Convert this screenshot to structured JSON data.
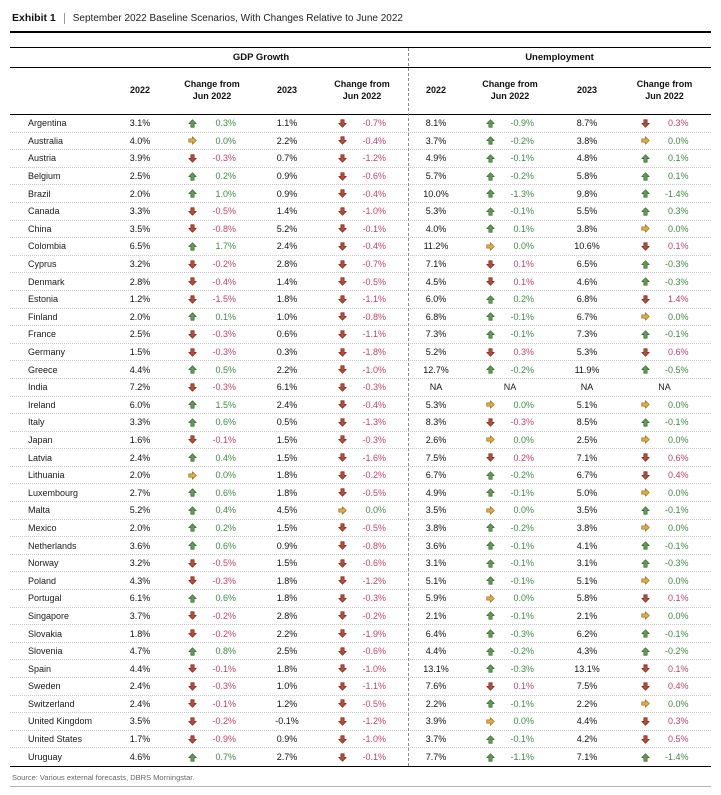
{
  "exhibit": {
    "label": "Exhibit 1",
    "title": "September 2022 Baseline Scenarios, With Changes Relative to June 2022"
  },
  "table": {
    "group_headers": {
      "gdp": "GDP Growth",
      "unemployment": "Unemployment"
    },
    "col_headers": {
      "y2022": "2022",
      "chg": "Change from\nJun 2022",
      "y2023": "2023"
    },
    "rows": [
      {
        "country": "Argentina",
        "g22": "3.1%",
        "gc22": [
          "0.3%",
          "up"
        ],
        "g23": "1.1%",
        "gc23": [
          "-0.7%",
          "down"
        ],
        "u22": "8.1%",
        "uc22": [
          "-0.9%",
          "up"
        ],
        "u23": "8.7%",
        "uc23": [
          "0.3%",
          "down"
        ]
      },
      {
        "country": "Australia",
        "g22": "4.0%",
        "gc22": [
          "0.0%",
          "flat"
        ],
        "g23": "2.2%",
        "gc23": [
          "-0.4%",
          "down"
        ],
        "u22": "3.7%",
        "uc22": [
          "-0.2%",
          "up"
        ],
        "u23": "3.8%",
        "uc23": [
          "0.0%",
          "flat"
        ]
      },
      {
        "country": "Austria",
        "g22": "3.9%",
        "gc22": [
          "-0.3%",
          "down"
        ],
        "g23": "0.7%",
        "gc23": [
          "-1.2%",
          "down"
        ],
        "u22": "4.9%",
        "uc22": [
          "-0.1%",
          "up"
        ],
        "u23": "4.8%",
        "uc23": [
          "0.1%",
          "up"
        ]
      },
      {
        "country": "Belgium",
        "g22": "2.5%",
        "gc22": [
          "0.2%",
          "up"
        ],
        "g23": "0.9%",
        "gc23": [
          "-0.6%",
          "down"
        ],
        "u22": "5.7%",
        "uc22": [
          "-0.2%",
          "up"
        ],
        "u23": "5.8%",
        "uc23": [
          "0.1%",
          "up"
        ]
      },
      {
        "country": "Brazil",
        "g22": "2.0%",
        "gc22": [
          "1.0%",
          "up"
        ],
        "g23": "0.9%",
        "gc23": [
          "-0.4%",
          "down"
        ],
        "u22": "10.0%",
        "uc22": [
          "-1.3%",
          "up"
        ],
        "u23": "9.8%",
        "uc23": [
          "-1.4%",
          "up"
        ]
      },
      {
        "country": "Canada",
        "g22": "3.3%",
        "gc22": [
          "-0.5%",
          "down"
        ],
        "g23": "1.4%",
        "gc23": [
          "-1.0%",
          "down"
        ],
        "u22": "5.3%",
        "uc22": [
          "-0.1%",
          "up"
        ],
        "u23": "5.5%",
        "uc23": [
          "0.3%",
          "up"
        ]
      },
      {
        "country": "China",
        "g22": "3.5%",
        "gc22": [
          "-0.8%",
          "down"
        ],
        "g23": "5.2%",
        "gc23": [
          "-0.1%",
          "down"
        ],
        "u22": "4.0%",
        "uc22": [
          "0.1%",
          "up"
        ],
        "u23": "3.8%",
        "uc23": [
          "0.0%",
          "flat"
        ]
      },
      {
        "country": "Colombia",
        "g22": "6.5%",
        "gc22": [
          "1.7%",
          "up"
        ],
        "g23": "2.4%",
        "gc23": [
          "-0.4%",
          "down"
        ],
        "u22": "11.2%",
        "uc22": [
          "0.0%",
          "flat"
        ],
        "u23": "10.6%",
        "uc23": [
          "0.1%",
          "down"
        ]
      },
      {
        "country": "Cyprus",
        "g22": "3.2%",
        "gc22": [
          "-0.2%",
          "down"
        ],
        "g23": "2.8%",
        "gc23": [
          "-0.7%",
          "down"
        ],
        "u22": "7.1%",
        "uc22": [
          "0.1%",
          "down"
        ],
        "u23": "6.5%",
        "uc23": [
          "-0.3%",
          "up"
        ]
      },
      {
        "country": "Denmark",
        "g22": "2.8%",
        "gc22": [
          "-0.4%",
          "down"
        ],
        "g23": "1.4%",
        "gc23": [
          "-0.5%",
          "down"
        ],
        "u22": "4.5%",
        "uc22": [
          "0.1%",
          "down"
        ],
        "u23": "4.6%",
        "uc23": [
          "-0.3%",
          "up"
        ]
      },
      {
        "country": "Estonia",
        "g22": "1.2%",
        "gc22": [
          "-1.5%",
          "down"
        ],
        "g23": "1.8%",
        "gc23": [
          "-1.1%",
          "down"
        ],
        "u22": "6.0%",
        "uc22": [
          "0.2%",
          "up"
        ],
        "u23": "6.8%",
        "uc23": [
          "1.4%",
          "down"
        ]
      },
      {
        "country": "Finland",
        "g22": "2.0%",
        "gc22": [
          "0.1%",
          "up"
        ],
        "g23": "1.0%",
        "gc23": [
          "-0.8%",
          "down"
        ],
        "u22": "6.8%",
        "uc22": [
          "-0.1%",
          "up"
        ],
        "u23": "6.7%",
        "uc23": [
          "0.0%",
          "flat"
        ]
      },
      {
        "country": "France",
        "g22": "2.5%",
        "gc22": [
          "-0.3%",
          "down"
        ],
        "g23": "0.6%",
        "gc23": [
          "-1.1%",
          "down"
        ],
        "u22": "7.3%",
        "uc22": [
          "-0.1%",
          "up"
        ],
        "u23": "7.3%",
        "uc23": [
          "-0.1%",
          "up"
        ]
      },
      {
        "country": "Germany",
        "g22": "1.5%",
        "gc22": [
          "-0.3%",
          "down"
        ],
        "g23": "0.3%",
        "gc23": [
          "-1.8%",
          "down"
        ],
        "u22": "5.2%",
        "uc22": [
          "0.3%",
          "down"
        ],
        "u23": "5.3%",
        "uc23": [
          "0.6%",
          "down"
        ]
      },
      {
        "country": "Greece",
        "g22": "4.4%",
        "gc22": [
          "0.5%",
          "up"
        ],
        "g23": "2.2%",
        "gc23": [
          "-1.0%",
          "down"
        ],
        "u22": "12.7%",
        "uc22": [
          "-0.2%",
          "up"
        ],
        "u23": "11.9%",
        "uc23": [
          "-0.5%",
          "up"
        ]
      },
      {
        "country": "India",
        "g22": "7.2%",
        "gc22": [
          "-0.3%",
          "down"
        ],
        "g23": "6.1%",
        "gc23": [
          "-0.3%",
          "down"
        ],
        "u22": "NA",
        "uc22": [
          "NA",
          "na"
        ],
        "u23": "NA",
        "uc23": [
          "NA",
          "na"
        ]
      },
      {
        "country": "Ireland",
        "g22": "6.0%",
        "gc22": [
          "1.5%",
          "up"
        ],
        "g23": "2.4%",
        "gc23": [
          "-0.4%",
          "down"
        ],
        "u22": "5.3%",
        "uc22": [
          "0.0%",
          "flat"
        ],
        "u23": "5.1%",
        "uc23": [
          "0.0%",
          "flat"
        ]
      },
      {
        "country": "Italy",
        "g22": "3.3%",
        "gc22": [
          "0.6%",
          "up"
        ],
        "g23": "0.5%",
        "gc23": [
          "-1.3%",
          "down"
        ],
        "u22": "8.3%",
        "uc22": [
          "-0.3%",
          "down"
        ],
        "u23": "8.5%",
        "uc23": [
          "-0.1%",
          "up"
        ]
      },
      {
        "country": "Japan",
        "g22": "1.6%",
        "gc22": [
          "-0.1%",
          "down"
        ],
        "g23": "1.5%",
        "gc23": [
          "-0.3%",
          "down"
        ],
        "u22": "2.6%",
        "uc22": [
          "0.0%",
          "flat"
        ],
        "u23": "2.5%",
        "uc23": [
          "0.0%",
          "flat"
        ]
      },
      {
        "country": "Latvia",
        "g22": "2.4%",
        "gc22": [
          "0.4%",
          "up"
        ],
        "g23": "1.5%",
        "gc23": [
          "-1.6%",
          "down"
        ],
        "u22": "7.5%",
        "uc22": [
          "0.2%",
          "down"
        ],
        "u23": "7.1%",
        "uc23": [
          "0.6%",
          "down"
        ]
      },
      {
        "country": "Lithuania",
        "g22": "2.0%",
        "gc22": [
          "0.0%",
          "flat"
        ],
        "g23": "1.8%",
        "gc23": [
          "-0.2%",
          "down"
        ],
        "u22": "6.7%",
        "uc22": [
          "-0.2%",
          "up"
        ],
        "u23": "6.7%",
        "uc23": [
          "0.4%",
          "down"
        ]
      },
      {
        "country": "Luxembourg",
        "g22": "2.7%",
        "gc22": [
          "0.6%",
          "up"
        ],
        "g23": "1.8%",
        "gc23": [
          "-0.5%",
          "down"
        ],
        "u22": "4.9%",
        "uc22": [
          "-0.1%",
          "up"
        ],
        "u23": "5.0%",
        "uc23": [
          "0.0%",
          "flat"
        ]
      },
      {
        "country": "Malta",
        "g22": "5.2%",
        "gc22": [
          "0.4%",
          "up"
        ],
        "g23": "4.5%",
        "gc23": [
          "0.0%",
          "flat"
        ],
        "u22": "3.5%",
        "uc22": [
          "0.0%",
          "flat"
        ],
        "u23": "3.5%",
        "uc23": [
          "-0.1%",
          "up"
        ]
      },
      {
        "country": "Mexico",
        "g22": "2.0%",
        "gc22": [
          "0.2%",
          "up"
        ],
        "g23": "1.5%",
        "gc23": [
          "-0.5%",
          "down"
        ],
        "u22": "3.8%",
        "uc22": [
          "-0.2%",
          "up"
        ],
        "u23": "3.8%",
        "uc23": [
          "0.0%",
          "flat"
        ]
      },
      {
        "country": "Netherlands",
        "g22": "3.6%",
        "gc22": [
          "0.6%",
          "up"
        ],
        "g23": "0.9%",
        "gc23": [
          "-0.8%",
          "down"
        ],
        "u22": "3.6%",
        "uc22": [
          "-0.1%",
          "up"
        ],
        "u23": "4.1%",
        "uc23": [
          "-0.1%",
          "up"
        ]
      },
      {
        "country": "Norway",
        "g22": "3.2%",
        "gc22": [
          "-0.5%",
          "down"
        ],
        "g23": "1.5%",
        "gc23": [
          "-0.6%",
          "down"
        ],
        "u22": "3.1%",
        "uc22": [
          "-0.1%",
          "up"
        ],
        "u23": "3.1%",
        "uc23": [
          "-0.3%",
          "up"
        ]
      },
      {
        "country": "Poland",
        "g22": "4.3%",
        "gc22": [
          "-0.3%",
          "down"
        ],
        "g23": "1.8%",
        "gc23": [
          "-1.2%",
          "down"
        ],
        "u22": "5.1%",
        "uc22": [
          "-0.1%",
          "up"
        ],
        "u23": "5.1%",
        "uc23": [
          "0.0%",
          "flat"
        ]
      },
      {
        "country": "Portugal",
        "g22": "6.1%",
        "gc22": [
          "0.6%",
          "up"
        ],
        "g23": "1.8%",
        "gc23": [
          "-0.3%",
          "down"
        ],
        "u22": "5.9%",
        "uc22": [
          "0.0%",
          "flat"
        ],
        "u23": "5.8%",
        "uc23": [
          "0.1%",
          "down"
        ]
      },
      {
        "country": "Singapore",
        "g22": "3.7%",
        "gc22": [
          "-0.2%",
          "down"
        ],
        "g23": "2.8%",
        "gc23": [
          "-0.2%",
          "down"
        ],
        "u22": "2.1%",
        "uc22": [
          "-0.1%",
          "up"
        ],
        "u23": "2.1%",
        "uc23": [
          "0.0%",
          "flat"
        ]
      },
      {
        "country": "Slovakia",
        "g22": "1.8%",
        "gc22": [
          "-0.2%",
          "down"
        ],
        "g23": "2.2%",
        "gc23": [
          "-1.9%",
          "down"
        ],
        "u22": "6.4%",
        "uc22": [
          "-0.3%",
          "up"
        ],
        "u23": "6.2%",
        "uc23": [
          "-0.1%",
          "up"
        ]
      },
      {
        "country": "Slovenia",
        "g22": "4.7%",
        "gc22": [
          "0.8%",
          "up"
        ],
        "g23": "2.5%",
        "gc23": [
          "-0.6%",
          "down"
        ],
        "u22": "4.4%",
        "uc22": [
          "-0.2%",
          "up"
        ],
        "u23": "4.3%",
        "uc23": [
          "-0.2%",
          "up"
        ]
      },
      {
        "country": "Spain",
        "g22": "4.4%",
        "gc22": [
          "-0.1%",
          "down"
        ],
        "g23": "1.8%",
        "gc23": [
          "-1.0%",
          "down"
        ],
        "u22": "13.1%",
        "uc22": [
          "-0.3%",
          "up"
        ],
        "u23": "13.1%",
        "uc23": [
          "0.1%",
          "down"
        ]
      },
      {
        "country": "Sweden",
        "g22": "2.4%",
        "gc22": [
          "-0.3%",
          "down"
        ],
        "g23": "1.0%",
        "gc23": [
          "-1.1%",
          "down"
        ],
        "u22": "7.6%",
        "uc22": [
          "0.1%",
          "down"
        ],
        "u23": "7.5%",
        "uc23": [
          "0.4%",
          "down"
        ]
      },
      {
        "country": "Switzerland",
        "g22": "2.4%",
        "gc22": [
          "-0.1%",
          "down"
        ],
        "g23": "1.2%",
        "gc23": [
          "-0.5%",
          "down"
        ],
        "u22": "2.2%",
        "uc22": [
          "-0.1%",
          "up"
        ],
        "u23": "2.2%",
        "uc23": [
          "0.0%",
          "flat"
        ]
      },
      {
        "country": "United Kingdom",
        "g22": "3.5%",
        "gc22": [
          "-0.2%",
          "down"
        ],
        "g23": "-0.1%",
        "gc23": [
          "-1.2%",
          "down"
        ],
        "u22": "3.9%",
        "uc22": [
          "0.0%",
          "flat"
        ],
        "u23": "4.4%",
        "uc23": [
          "0.3%",
          "down"
        ]
      },
      {
        "country": "United States",
        "g22": "1.7%",
        "gc22": [
          "-0.9%",
          "down"
        ],
        "g23": "0.9%",
        "gc23": [
          "-1.0%",
          "down"
        ],
        "u22": "3.7%",
        "uc22": [
          "-0.1%",
          "up"
        ],
        "u23": "4.2%",
        "uc23": [
          "0.5%",
          "down"
        ]
      },
      {
        "country": "Uruguay",
        "g22": "4.6%",
        "gc22": [
          "0.7%",
          "up"
        ],
        "g23": "2.7%",
        "gc23": [
          "-0.1%",
          "down"
        ],
        "u22": "7.7%",
        "uc22": [
          "-1.1%",
          "up"
        ],
        "u23": "7.1%",
        "uc23": [
          "-1.4%",
          "up"
        ]
      }
    ]
  },
  "source": "Source: Various external forecasts, DBRS Morningstar.",
  "colors": {
    "positive_text": "#3c8c42",
    "negative_text": "#c9406a",
    "arrow_up_green": "#5f9d52",
    "arrow_down_red": "#bd4a36",
    "arrow_flat_amber": "#e5ab3f"
  }
}
